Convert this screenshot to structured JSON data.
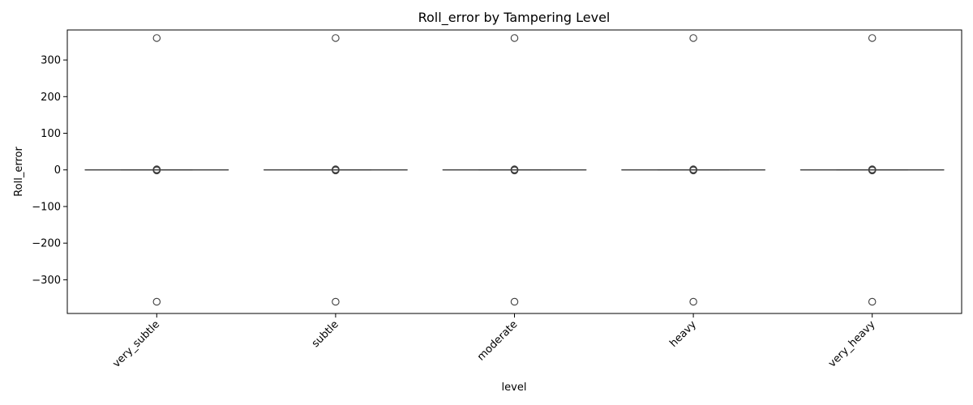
{
  "chart_data": {
    "type": "box",
    "title": "Roll_error by Tampering Level",
    "xlabel": "level",
    "ylabel": "Roll_error",
    "categories": [
      "very_subtle",
      "subtle",
      "moderate",
      "heavy",
      "very_heavy"
    ],
    "ylim": [
      -392,
      382
    ],
    "yticks": [
      -300,
      -200,
      -100,
      0,
      100,
      200,
      300
    ],
    "grid": false,
    "xtick_rotation": 45,
    "boxes": [
      {
        "category": "very_subtle",
        "q1": 0,
        "median": 0,
        "q3": 0,
        "whisker_low": 0,
        "whisker_high": 0,
        "outliers": [
          360,
          -360,
          1.5,
          -1.5,
          0.8,
          -0.8
        ]
      },
      {
        "category": "subtle",
        "q1": 0,
        "median": 0,
        "q3": 0,
        "whisker_low": 0,
        "whisker_high": 0,
        "outliers": [
          360,
          -360,
          1.5,
          -1.5,
          0.8,
          -0.8
        ]
      },
      {
        "category": "moderate",
        "q1": 0,
        "median": 0,
        "q3": 0,
        "whisker_low": 0,
        "whisker_high": 0,
        "outliers": [
          360,
          -360,
          1.5,
          -1.5,
          0.8,
          -0.8
        ]
      },
      {
        "category": "heavy",
        "q1": 0,
        "median": 0,
        "q3": 0,
        "whisker_low": 0,
        "whisker_high": 0,
        "outliers": [
          360,
          -360,
          1.5,
          -1.5,
          0.8,
          -0.8
        ]
      },
      {
        "category": "very_heavy",
        "q1": 0,
        "median": 0,
        "q3": 0,
        "whisker_low": 0,
        "whisker_high": 0,
        "outliers": [
          360,
          -360,
          1.5,
          -1.5,
          0.8,
          -0.8
        ]
      }
    ],
    "colors": {
      "box_edge": "#3f3f3f",
      "box_fill": "#1f77b4"
    }
  }
}
